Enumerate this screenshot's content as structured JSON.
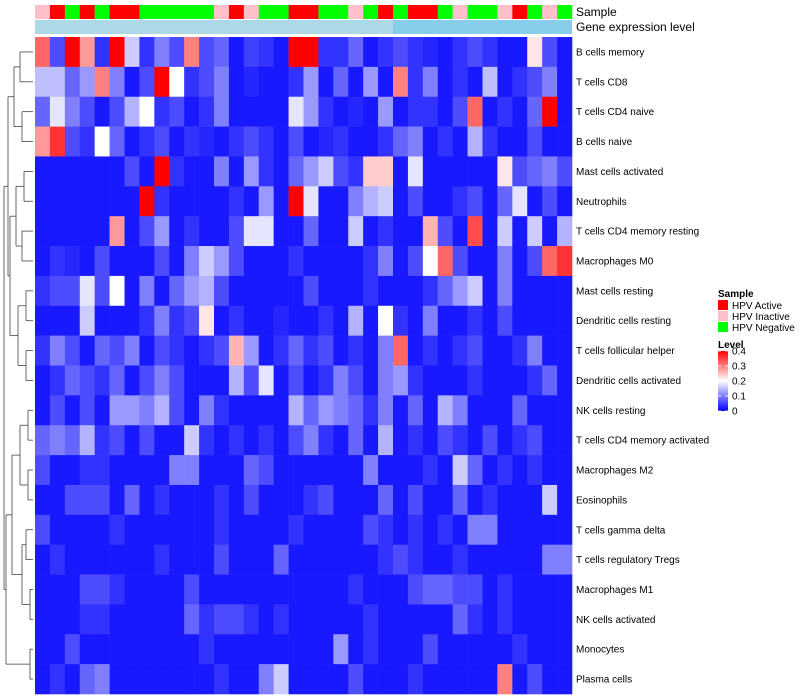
{
  "chart_data": {
    "type": "heatmap",
    "annotation_labels": [
      "Sample",
      "Gene expression level"
    ],
    "row_labels": [
      "B cells memory",
      "T cells CD8",
      "T cells CD4 naive",
      "B cells naive",
      "Mast cells activated",
      "Neutrophils",
      "T cells CD4 memory resting",
      "Macrophages M0",
      "Mast cells resting",
      "Dendritic cells resting",
      "T cells follicular helper",
      "Dendritic cells activated",
      "NK cells resting",
      "T cells CD4 memory activated",
      "Macrophages M2",
      "Eosinophils",
      "T cells gamma delta",
      "T cells regulatory  Tregs",
      "Macrophages M1",
      "NK cells activated",
      "Monocytes",
      "Plasma cells"
    ],
    "n_columns": 36,
    "sample_groups": [
      "HPV Inactive",
      "HPV Active",
      "HPV Negative",
      "HPV Active",
      "HPV Negative",
      "HPV Active",
      "HPV Active",
      "HPV Negative",
      "HPV Negative",
      "HPV Negative",
      "HPV Negative",
      "HPV Negative",
      "HPV Inactive",
      "HPV Active",
      "HPV Inactive",
      "HPV Negative",
      "HPV Negative",
      "HPV Active",
      "HPV Active",
      "HPV Negative",
      "HPV Negative",
      "HPV Inactive",
      "HPV Negative",
      "HPV Active",
      "HPV Negative",
      "HPV Active",
      "HPV Active",
      "HPV Negative",
      "HPV Inactive",
      "HPV Negative",
      "HPV Negative",
      "HPV Inactive",
      "HPV Active",
      "HPV Negative",
      "HPV Inactive",
      "HPV Negative"
    ],
    "gene_expression_level_split_column": 24,
    "values": [
      [
        0.32,
        0.06,
        0.4,
        0.28,
        0.04,
        0.4,
        0.16,
        0.04,
        0.1,
        0.06,
        0.3,
        0.06,
        0.08,
        0.02,
        0.05,
        0.04,
        0.02,
        0.4,
        0.4,
        0.04,
        0.04,
        0.08,
        0.02,
        0.04,
        0.06,
        0.04,
        0.03,
        0.02,
        0.04,
        0.06,
        0.04,
        0.02,
        0.02,
        0.22,
        0.06,
        0.02
      ],
      [
        0.15,
        0.15,
        0.08,
        0.12,
        0.3,
        0.1,
        0.02,
        0.06,
        0.4,
        0.2,
        0.04,
        0.06,
        0.1,
        0.02,
        0.03,
        0.02,
        0.02,
        0.04,
        0.12,
        0.02,
        0.08,
        0.02,
        0.12,
        0.02,
        0.3,
        0.04,
        0.1,
        0.02,
        0.04,
        0.02,
        0.15,
        0.02,
        0.04,
        0.06,
        0.1,
        0.02
      ],
      [
        0.08,
        0.18,
        0.1,
        0.06,
        0.02,
        0.06,
        0.14,
        0.2,
        0.04,
        0.06,
        0.02,
        0.04,
        0.1,
        0.02,
        0.02,
        0.02,
        0.02,
        0.18,
        0.12,
        0.04,
        0.02,
        0.03,
        0.02,
        0.12,
        0.02,
        0.04,
        0.04,
        0.02,
        0.06,
        0.32,
        0.02,
        0.04,
        0.02,
        0.08,
        0.4,
        0.02
      ],
      [
        0.28,
        0.36,
        0.06,
        0.04,
        0.2,
        0.08,
        0.02,
        0.04,
        0.06,
        0.02,
        0.04,
        0.03,
        0.02,
        0.04,
        0.06,
        0.04,
        0.02,
        0.06,
        0.02,
        0.03,
        0.04,
        0.02,
        0.02,
        0.04,
        0.08,
        0.1,
        0.02,
        0.04,
        0.02,
        0.14,
        0.04,
        0.02,
        0.02,
        0.06,
        0.02,
        0.02
      ],
      [
        0.02,
        0.02,
        0.02,
        0.02,
        0.02,
        0.02,
        0.06,
        0.02,
        0.4,
        0.04,
        0.02,
        0.02,
        0.1,
        0.02,
        0.12,
        0.04,
        0.02,
        0.08,
        0.12,
        0.16,
        0.06,
        0.04,
        0.24,
        0.24,
        0.02,
        0.18,
        0.02,
        0.02,
        0.02,
        0.02,
        0.02,
        0.22,
        0.06,
        0.08,
        0.1,
        0.06
      ],
      [
        0.02,
        0.02,
        0.02,
        0.02,
        0.02,
        0.02,
        0.02,
        0.4,
        0.04,
        0.02,
        0.02,
        0.02,
        0.02,
        0.04,
        0.02,
        0.12,
        0.02,
        0.4,
        0.18,
        0.02,
        0.02,
        0.1,
        0.14,
        0.16,
        0.02,
        0.06,
        0.02,
        0.02,
        0.04,
        0.06,
        0.02,
        0.08,
        0.18,
        0.02,
        0.06,
        0.02
      ],
      [
        0.02,
        0.02,
        0.02,
        0.02,
        0.02,
        0.28,
        0.02,
        0.06,
        0.12,
        0.02,
        0.04,
        0.02,
        0.02,
        0.06,
        0.18,
        0.18,
        0.02,
        0.02,
        0.08,
        0.02,
        0.02,
        0.16,
        0.02,
        0.04,
        0.02,
        0.02,
        0.26,
        0.06,
        0.02,
        0.34,
        0.02,
        0.16,
        0.02,
        0.16,
        0.02,
        0.14
      ],
      [
        0.02,
        0.04,
        0.03,
        0.02,
        0.06,
        0.02,
        0.02,
        0.02,
        0.06,
        0.02,
        0.1,
        0.16,
        0.12,
        0.06,
        0.02,
        0.02,
        0.02,
        0.04,
        0.02,
        0.02,
        0.02,
        0.02,
        0.04,
        0.1,
        0.02,
        0.06,
        0.2,
        0.32,
        0.06,
        0.02,
        0.02,
        0.1,
        0.02,
        0.06,
        0.32,
        0.36
      ],
      [
        0.04,
        0.06,
        0.06,
        0.18,
        0.06,
        0.2,
        0.02,
        0.1,
        0.02,
        0.08,
        0.12,
        0.14,
        0.06,
        0.02,
        0.02,
        0.02,
        0.02,
        0.02,
        0.06,
        0.02,
        0.02,
        0.02,
        0.04,
        0.02,
        0.02,
        0.02,
        0.04,
        0.08,
        0.12,
        0.16,
        0.02,
        0.1,
        0.02,
        0.02,
        0.02,
        0.02
      ],
      [
        0.02,
        0.02,
        0.02,
        0.16,
        0.02,
        0.02,
        0.02,
        0.04,
        0.1,
        0.04,
        0.06,
        0.22,
        0.02,
        0.04,
        0.02,
        0.02,
        0.03,
        0.02,
        0.02,
        0.04,
        0.02,
        0.14,
        0.02,
        0.2,
        0.04,
        0.02,
        0.1,
        0.02,
        0.02,
        0.04,
        0.02,
        0.06,
        0.02,
        0.02,
        0.02,
        0.02
      ],
      [
        0.04,
        0.1,
        0.06,
        0.02,
        0.08,
        0.06,
        0.1,
        0.02,
        0.06,
        0.04,
        0.02,
        0.04,
        0.06,
        0.26,
        0.12,
        0.02,
        0.04,
        0.08,
        0.04,
        0.06,
        0.02,
        0.04,
        0.02,
        0.1,
        0.32,
        0.02,
        0.04,
        0.02,
        0.04,
        0.06,
        0.02,
        0.02,
        0.04,
        0.1,
        0.02,
        0.02
      ],
      [
        0.02,
        0.04,
        0.08,
        0.06,
        0.04,
        0.08,
        0.02,
        0.06,
        0.1,
        0.06,
        0.02,
        0.02,
        0.02,
        0.14,
        0.06,
        0.18,
        0.02,
        0.06,
        0.02,
        0.04,
        0.1,
        0.06,
        0.02,
        0.1,
        0.12,
        0.04,
        0.02,
        0.02,
        0.02,
        0.04,
        0.02,
        0.02,
        0.02,
        0.04,
        0.08,
        0.02
      ],
      [
        0.02,
        0.06,
        0.02,
        0.06,
        0.02,
        0.12,
        0.12,
        0.1,
        0.14,
        0.06,
        0.02,
        0.1,
        0.04,
        0.02,
        0.02,
        0.02,
        0.02,
        0.14,
        0.08,
        0.12,
        0.1,
        0.08,
        0.04,
        0.1,
        0.02,
        0.08,
        0.02,
        0.14,
        0.1,
        0.02,
        0.02,
        0.02,
        0.08,
        0.02,
        0.02,
        0.02
      ],
      [
        0.08,
        0.1,
        0.08,
        0.14,
        0.04,
        0.06,
        0.02,
        0.06,
        0.02,
        0.02,
        0.16,
        0.04,
        0.02,
        0.04,
        0.02,
        0.04,
        0.02,
        0.06,
        0.1,
        0.04,
        0.02,
        0.08,
        0.02,
        0.14,
        0.02,
        0.04,
        0.02,
        0.06,
        0.04,
        0.02,
        0.06,
        0.02,
        0.04,
        0.06,
        0.02,
        0.02
      ],
      [
        0.06,
        0.02,
        0.02,
        0.04,
        0.04,
        0.02,
        0.02,
        0.02,
        0.02,
        0.1,
        0.1,
        0.02,
        0.02,
        0.02,
        0.08,
        0.06,
        0.02,
        0.02,
        0.02,
        0.02,
        0.02,
        0.02,
        0.1,
        0.02,
        0.02,
        0.02,
        0.04,
        0.02,
        0.16,
        0.08,
        0.02,
        0.04,
        0.02,
        0.04,
        0.02,
        0.02
      ],
      [
        0.02,
        0.02,
        0.06,
        0.06,
        0.06,
        0.02,
        0.08,
        0.02,
        0.04,
        0.02,
        0.02,
        0.02,
        0.04,
        0.02,
        0.06,
        0.02,
        0.02,
        0.02,
        0.04,
        0.06,
        0.02,
        0.02,
        0.02,
        0.08,
        0.02,
        0.06,
        0.02,
        0.02,
        0.08,
        0.02,
        0.04,
        0.02,
        0.02,
        0.02,
        0.16,
        0.02
      ],
      [
        0.06,
        0.02,
        0.02,
        0.02,
        0.02,
        0.04,
        0.02,
        0.02,
        0.02,
        0.02,
        0.02,
        0.02,
        0.04,
        0.02,
        0.02,
        0.02,
        0.02,
        0.04,
        0.02,
        0.02,
        0.02,
        0.02,
        0.06,
        0.04,
        0.02,
        0.04,
        0.02,
        0.04,
        0.02,
        0.1,
        0.1,
        0.02,
        0.02,
        0.02,
        0.02,
        0.02
      ],
      [
        0.02,
        0.04,
        0.02,
        0.02,
        0.02,
        0.02,
        0.02,
        0.02,
        0.04,
        0.02,
        0.02,
        0.02,
        0.06,
        0.02,
        0.02,
        0.02,
        0.08,
        0.02,
        0.02,
        0.02,
        0.02,
        0.02,
        0.02,
        0.04,
        0.06,
        0.04,
        0.02,
        0.02,
        0.04,
        0.02,
        0.02,
        0.02,
        0.02,
        0.02,
        0.1,
        0.1
      ],
      [
        0.02,
        0.02,
        0.02,
        0.06,
        0.06,
        0.04,
        0.02,
        0.02,
        0.02,
        0.02,
        0.06,
        0.02,
        0.02,
        0.02,
        0.02,
        0.02,
        0.02,
        0.02,
        0.02,
        0.02,
        0.02,
        0.04,
        0.02,
        0.02,
        0.02,
        0.06,
        0.08,
        0.08,
        0.06,
        0.06,
        0.02,
        0.04,
        0.02,
        0.02,
        0.02,
        0.02
      ],
      [
        0.02,
        0.02,
        0.02,
        0.04,
        0.04,
        0.02,
        0.02,
        0.02,
        0.02,
        0.02,
        0.08,
        0.04,
        0.06,
        0.06,
        0.04,
        0.02,
        0.04,
        0.02,
        0.02,
        0.02,
        0.02,
        0.02,
        0.04,
        0.02,
        0.02,
        0.02,
        0.02,
        0.02,
        0.08,
        0.04,
        0.02,
        0.04,
        0.02,
        0.02,
        0.02,
        0.02
      ],
      [
        0.02,
        0.02,
        0.06,
        0.02,
        0.02,
        0.02,
        0.02,
        0.02,
        0.02,
        0.02,
        0.02,
        0.04,
        0.02,
        0.02,
        0.02,
        0.02,
        0.02,
        0.02,
        0.02,
        0.02,
        0.12,
        0.02,
        0.04,
        0.02,
        0.02,
        0.02,
        0.06,
        0.02,
        0.02,
        0.02,
        0.02,
        0.02,
        0.04,
        0.02,
        0.02,
        0.02
      ],
      [
        0.02,
        0.04,
        0.02,
        0.08,
        0.1,
        0.02,
        0.02,
        0.02,
        0.02,
        0.02,
        0.02,
        0.02,
        0.04,
        0.02,
        0.02,
        0.1,
        0.16,
        0.02,
        0.02,
        0.02,
        0.02,
        0.06,
        0.02,
        0.02,
        0.02,
        0.04,
        0.02,
        0.02,
        0.02,
        0.02,
        0.02,
        0.3,
        0.02,
        0.06,
        0.02,
        0.02
      ]
    ],
    "legend_sample": {
      "title": "Sample",
      "entries": [
        {
          "label": "HPV Active",
          "color": "#ff0000"
        },
        {
          "label": "HPV Inactive",
          "color": "#ffc0cb"
        },
        {
          "label": "HPV Negative",
          "color": "#00ff00"
        }
      ]
    },
    "legend_level": {
      "title": "Level",
      "ticks": [
        "0.4",
        "0.3",
        "0.2",
        "0.1",
        "0"
      ],
      "min": 0,
      "max": 0.4,
      "colors": {
        "low": "#0000ff",
        "mid": "#ffffff",
        "high": "#ff0000"
      }
    },
    "gene_level_colors": {
      "left": "#add8e6",
      "right": "#87ceeb"
    }
  }
}
